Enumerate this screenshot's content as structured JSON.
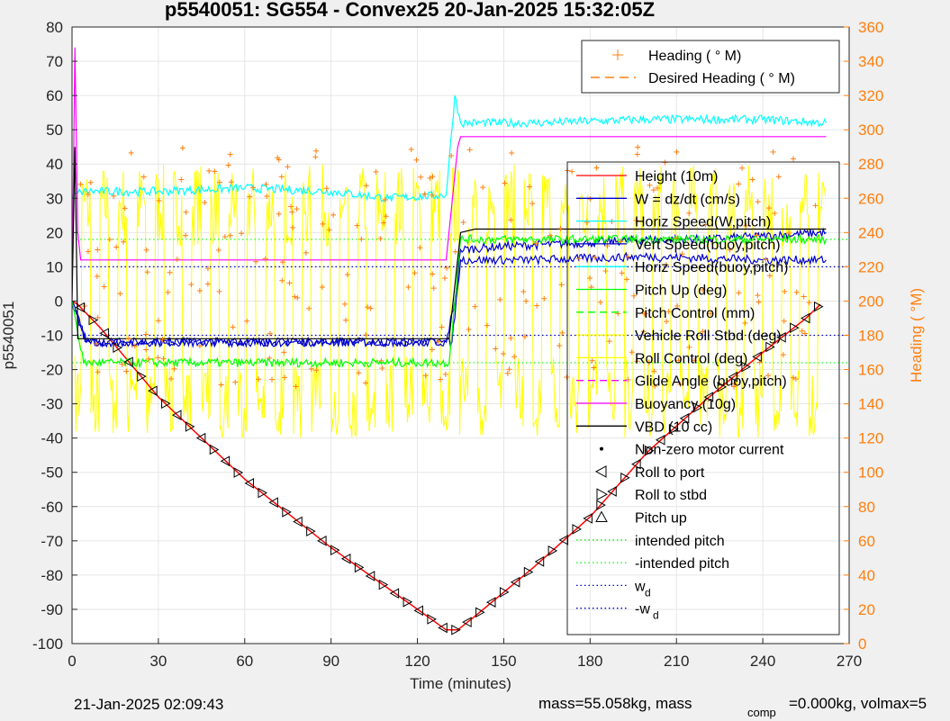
{
  "title": "p5540051: SG554 - Convex25 20-Jan-2025 15:32:05Z",
  "footer": {
    "date": "21-Jan-2025 02:09:43",
    "mass": "mass=55.058kg, mass",
    "mass_sub": "comp",
    "mass_rest": "=0.000kg, volmax=5"
  },
  "chart_data": {
    "type": "line",
    "xlabel": "Time (minutes)",
    "ylabel_left": "p5540051",
    "ylabel_right": "Heading (  °M)",
    "xlim": [
      0,
      270
    ],
    "ylim_left": [
      -100,
      80
    ],
    "ylim_right": [
      0,
      360
    ],
    "x_ticks": [
      0,
      30,
      60,
      90,
      120,
      150,
      180,
      210,
      240,
      270
    ],
    "y_ticks_left": [
      -100,
      -90,
      -80,
      -70,
      -60,
      -50,
      -40,
      -30,
      -20,
      -10,
      0,
      10,
      20,
      30,
      40,
      50,
      60,
      70,
      80
    ],
    "y_ticks_right": [
      0,
      20,
      40,
      60,
      80,
      100,
      120,
      140,
      160,
      180,
      200,
      220,
      240,
      260,
      280,
      300,
      320,
      340,
      360
    ],
    "grid": true,
    "legend_right": {
      "placement": "top-right",
      "entries": [
        "Heading (  ° M)",
        "Desired Heading (    ° M)"
      ]
    },
    "legend_left": {
      "placement": "right",
      "entries": [
        "Height (10m)",
        "W = dz/dt (cm/s)",
        "Horiz Speed(W,pitch)",
        "Vert Speed(buoy,pitch)",
        "Horiz Speed(buoy,pitch)",
        "Pitch Up (deg)",
        "Pitch Control (mm)",
        "Vehicle Roll Stbd (deg)",
        "Roll Control (deg)",
        "Glide Angle (buoy,pitch)",
        "Buoyancy (10g)",
        "VBD (10 cc)",
        "Non-zero motor current",
        "Roll to port",
        "Roll to stbd",
        "Pitch up",
        "intended pitch",
        "-intended pitch",
        "w",
        "-w"
      ],
      "entry_subscripts": {
        "18": "d",
        "19": "d"
      }
    },
    "series": [
      {
        "name": "Height (10m)",
        "color": "#ff0000",
        "x": [
          0,
          2,
          10,
          30,
          60,
          90,
          120,
          130,
          134,
          140,
          160,
          180,
          200,
          220,
          240,
          255,
          260
        ],
        "y": [
          0,
          -1,
          -8,
          -28,
          -52,
          -72,
          -90,
          -96,
          -96,
          -92,
          -78,
          -63,
          -44,
          -29,
          -15,
          -5,
          -1
        ]
      },
      {
        "name": "W = dz/dt (cm/s)",
        "color": "#0000cd",
        "x": [
          0,
          5,
          30,
          60,
          90,
          120,
          130,
          133,
          135,
          150,
          180,
          200,
          220,
          240,
          262
        ],
        "y": [
          0,
          -12,
          -12,
          -12,
          -12,
          -12,
          -12,
          0,
          15,
          16,
          17,
          18,
          18,
          19,
          20
        ]
      },
      {
        "name": "Horiz Speed(W,pitch)",
        "color": "#00ffff",
        "x": [
          0,
          3,
          30,
          60,
          90,
          110,
          130,
          133,
          135,
          160,
          200,
          240,
          262
        ],
        "y": [
          30,
          32,
          32,
          33,
          32,
          30,
          31,
          60,
          52,
          52,
          53,
          53,
          52
        ]
      },
      {
        "name": "Vert Speed(buoy,pitch)",
        "color": "#0000cd",
        "x": [
          0,
          5,
          60,
          120,
          132,
          135,
          160,
          200,
          240,
          262
        ],
        "y": [
          0,
          -12,
          -12,
          -12,
          -12,
          12,
          12,
          13,
          12,
          12
        ]
      },
      {
        "name": "Pitch Up (deg)",
        "color": "#00ff00",
        "x": [
          0,
          4,
          60,
          120,
          131,
          135,
          160,
          200,
          240,
          262
        ],
        "y": [
          0,
          -18,
          -18,
          -18,
          -18,
          18,
          18,
          18,
          18,
          18
        ]
      },
      {
        "name": "Buoyancy (10g)",
        "color": "#ff00ff",
        "x": [
          0,
          1,
          2,
          3,
          130,
          134,
          135,
          200,
          262
        ],
        "y": [
          0,
          74,
          20,
          12,
          12,
          45,
          48,
          48,
          48
        ]
      },
      {
        "name": "VBD (10 cc)",
        "color": "#000000",
        "x": [
          0,
          1,
          2,
          130,
          131,
          135,
          140,
          200,
          262
        ],
        "y": [
          0,
          45,
          -11,
          -11,
          -11,
          20,
          21,
          21,
          21
        ]
      }
    ],
    "heading_samples": {
      "name": "Heading (  ° M)",
      "color": "#ff7f0e",
      "y_range": [
        150,
        290
      ]
    },
    "intended_pitch": 18,
    "w_d": 10
  }
}
